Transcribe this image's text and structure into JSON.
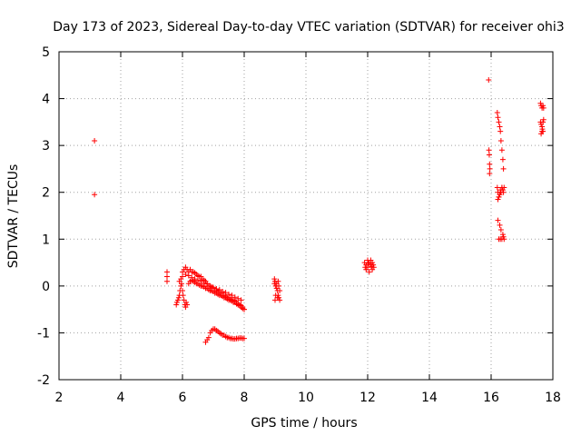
{
  "chart_data": {
    "type": "scatter",
    "title": "Day 173 of 2023, Sidereal Day-to-day VTEC variation (SDTVAR) for receiver ohi3",
    "xlabel": "GPS time / hours",
    "ylabel": "SDTVAR / TECUs",
    "xlim": [
      2,
      18
    ],
    "ylim": [
      -2,
      5
    ],
    "xticks": [
      2,
      4,
      6,
      8,
      10,
      12,
      14,
      16,
      18
    ],
    "yticks": [
      -2,
      -1,
      0,
      1,
      2,
      3,
      4,
      5
    ],
    "grid": true,
    "marker": "+",
    "color": "#ff0000",
    "series": [
      {
        "name": "SDTVAR",
        "x": [
          3.15,
          3.15,
          5.5,
          5.5,
          5.5,
          5.8,
          5.82,
          5.85,
          5.88,
          5.9,
          5.92,
          5.95,
          5.97,
          6.0,
          6.02,
          6.05,
          6.08,
          6.1,
          6.12,
          6.15,
          5.9,
          5.95,
          6.0,
          6.05,
          6.1,
          6.15,
          6.2,
          6.25,
          6.3,
          6.35,
          6.4,
          6.45,
          6.5,
          6.55,
          6.6,
          6.65,
          6.7,
          6.75,
          6.8,
          6.85,
          6.9,
          6.95,
          7.0,
          7.05,
          7.1,
          7.15,
          7.2,
          7.25,
          7.3,
          7.35,
          7.4,
          7.45,
          7.5,
          7.55,
          7.6,
          7.65,
          7.7,
          7.75,
          7.8,
          7.85,
          7.9,
          7.95,
          8.0,
          6.2,
          6.25,
          6.3,
          6.35,
          6.4,
          6.45,
          6.5,
          6.55,
          6.6,
          6.65,
          6.7,
          6.75,
          6.8,
          6.85,
          6.9,
          6.95,
          7.0,
          7.05,
          7.1,
          7.15,
          7.2,
          7.25,
          7.3,
          7.35,
          7.4,
          7.45,
          7.5,
          7.55,
          7.6,
          7.65,
          7.7,
          7.75,
          7.8,
          7.85,
          7.9,
          7.95,
          8.0,
          6.0,
          6.1,
          6.2,
          6.3,
          6.4,
          6.5,
          6.6,
          6.7,
          6.8,
          6.9,
          7.0,
          7.1,
          7.2,
          7.3,
          7.4,
          7.5,
          7.6,
          7.7,
          7.8,
          7.9,
          6.75,
          6.8,
          6.85,
          6.9,
          6.95,
          7.0,
          7.05,
          7.1,
          7.15,
          7.2,
          7.25,
          7.3,
          7.35,
          7.4,
          7.45,
          7.5,
          7.55,
          7.6,
          7.65,
          7.7,
          7.75,
          7.8,
          7.85,
          7.9,
          7.95,
          8.0,
          8.98,
          9.0,
          9.02,
          9.05,
          9.08,
          9.1,
          9.12,
          9.15,
          9.0,
          9.05,
          9.1,
          9.15,
          9.02,
          9.08,
          9.12,
          8.98,
          11.9,
          11.95,
          12.0,
          12.05,
          12.1,
          12.15,
          12.2,
          11.95,
          12.05,
          12.15,
          12.0,
          12.1,
          11.92,
          12.18,
          12.02,
          12.12,
          15.92,
          15.93,
          15.95,
          15.95,
          15.94,
          15.96,
          16.2,
          16.22,
          16.25,
          16.28,
          16.3,
          16.32,
          16.35,
          16.38,
          16.4,
          16.2,
          16.22,
          16.25,
          16.3,
          16.35,
          16.22,
          16.28,
          16.32,
          16.38,
          16.4,
          16.42,
          16.25,
          16.3,
          16.35,
          16.22,
          16.25,
          16.28,
          16.3,
          16.32,
          16.35,
          16.38,
          16.4,
          16.42,
          17.6,
          17.62,
          17.65,
          17.68,
          17.7,
          17.6,
          17.62,
          17.65,
          17.68,
          17.7,
          17.65,
          17.62,
          17.68,
          17.66
        ],
        "y": [
          3.1,
          1.95,
          0.3,
          0.2,
          0.1,
          -0.4,
          -0.35,
          -0.3,
          -0.25,
          -0.2,
          -0.1,
          0.0,
          0.05,
          -0.1,
          -0.2,
          -0.3,
          -0.4,
          -0.45,
          -0.35,
          -0.4,
          0.1,
          0.15,
          0.3,
          0.35,
          0.4,
          0.35,
          0.3,
          0.35,
          0.3,
          0.3,
          0.28,
          0.25,
          0.22,
          0.2,
          0.2,
          0.15,
          0.12,
          0.1,
          0.05,
          0.0,
          0.0,
          -0.02,
          -0.05,
          -0.1,
          -0.1,
          -0.12,
          -0.15,
          -0.15,
          -0.2,
          -0.2,
          -0.22,
          -0.25,
          -0.25,
          -0.28,
          -0.3,
          -0.3,
          -0.32,
          -0.35,
          -0.38,
          -0.4,
          -0.42,
          -0.45,
          -0.5,
          0.05,
          0.1,
          0.12,
          0.1,
          0.08,
          0.05,
          0.05,
          0.02,
          0.0,
          0.0,
          -0.02,
          -0.05,
          -0.05,
          -0.08,
          -0.1,
          -0.1,
          -0.12,
          -0.15,
          -0.15,
          -0.18,
          -0.2,
          -0.2,
          -0.22,
          -0.25,
          -0.25,
          -0.28,
          -0.3,
          -0.3,
          -0.32,
          -0.35,
          -0.35,
          -0.38,
          -0.4,
          -0.42,
          -0.45,
          -0.48,
          -0.5,
          0.2,
          0.25,
          0.22,
          0.18,
          0.15,
          0.12,
          0.1,
          0.06,
          0.04,
          0.0,
          -0.03,
          -0.06,
          -0.08,
          -0.12,
          -0.14,
          -0.18,
          -0.2,
          -0.24,
          -0.27,
          -0.3,
          -1.2,
          -1.15,
          -1.1,
          -1.0,
          -0.95,
          -0.92,
          -0.92,
          -0.95,
          -0.97,
          -1.0,
          -1.02,
          -1.05,
          -1.05,
          -1.08,
          -1.1,
          -1.1,
          -1.12,
          -1.12,
          -1.13,
          -1.13,
          -1.12,
          -1.12,
          -1.11,
          -1.11,
          -1.12,
          -1.12,
          0.15,
          0.1,
          0.0,
          -0.05,
          -0.1,
          -0.2,
          -0.25,
          -0.3,
          -0.3,
          0.05,
          0.1,
          -0.1,
          -0.2,
          -0.25,
          0.0,
          0.05,
          0.5,
          0.45,
          0.4,
          0.5,
          0.45,
          0.5,
          0.4,
          0.35,
          0.3,
          0.35,
          0.55,
          0.55,
          0.4,
          0.45,
          0.48,
          0.42,
          4.4,
          2.9,
          2.6,
          2.4,
          2.8,
          2.5,
          3.7,
          3.6,
          3.5,
          3.4,
          3.3,
          3.1,
          2.9,
          2.7,
          2.5,
          2.1,
          2.0,
          1.9,
          2.0,
          2.1,
          1.4,
          1.3,
          1.2,
          1.1,
          1.05,
          1.0,
          1.0,
          1.0,
          1.0,
          1.85,
          1.9,
          1.95,
          2.05,
          2.0,
          2.1,
          2.05,
          2.0,
          2.1,
          3.9,
          3.85,
          3.8,
          3.85,
          3.8,
          3.5,
          3.45,
          3.4,
          3.5,
          3.55,
          3.3,
          3.25,
          3.3,
          3.35
        ]
      }
    ]
  }
}
